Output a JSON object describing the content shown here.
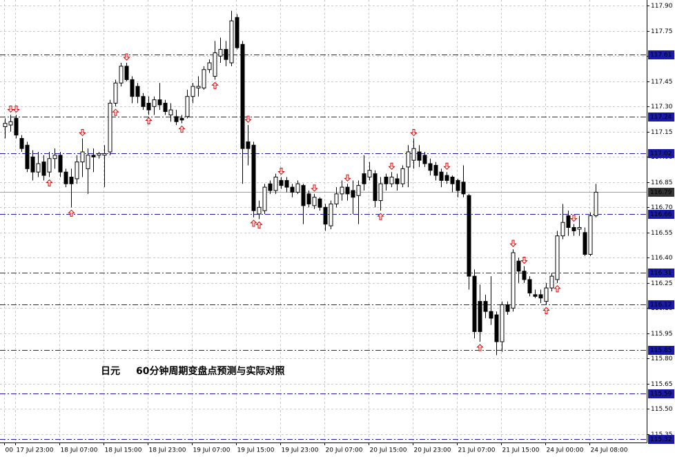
{
  "chart_data": {
    "type": "candlestick",
    "title": "日元",
    "subtitle": "60分钟周期变盘点预测与实际对照",
    "categories": [
      "00",
      null,
      "17 Jul 23:00",
      null,
      null,
      null,
      null,
      null,
      null,
      null,
      "18 Jul 07:00",
      null,
      null,
      null,
      null,
      null,
      null,
      null,
      "18 Jul 15:00",
      null,
      null,
      null,
      null,
      null,
      null,
      null,
      "18 Jul 23:00",
      null,
      null,
      null,
      null,
      null,
      null,
      null,
      "19 Jul 07:00",
      null,
      null,
      null,
      null,
      null,
      null,
      null,
      "19 Jul 15:00",
      null,
      null,
      null,
      null,
      null,
      null,
      null,
      "19 Jul 23:00",
      null,
      null,
      null,
      null,
      null,
      null,
      null,
      "20 Jul 07:00",
      null,
      null,
      null,
      null,
      null,
      null,
      null,
      "20 Jul 15:00",
      null,
      null,
      null,
      null,
      null,
      null,
      null,
      "20 Jul 23:00",
      null,
      null,
      null,
      null,
      null,
      null,
      null,
      "21 Jul 07:00",
      null,
      null,
      null,
      null,
      null,
      null,
      null,
      "21 Jul 15:00",
      null,
      null,
      null,
      null,
      null,
      null,
      null,
      "24 Jul 00:00",
      null,
      null,
      null,
      null,
      null,
      null,
      null,
      "24 Jul 08:00",
      null
    ],
    "open": [
      117.18,
      117.19,
      117.23,
      117.11,
      117.07,
      117.0,
      116.91,
      116.97,
      116.91,
      116.99,
      117.01,
      116.91,
      116.88,
      116.87,
      116.97,
      116.93,
      117.01,
      117.01,
      117.01,
      117.03,
      117.32,
      117.44,
      117.54,
      117.46,
      117.42,
      117.36,
      117.32,
      117.3,
      117.34,
      117.32,
      117.25,
      117.24,
      117.23,
      117.24,
      117.36,
      117.41,
      117.41,
      117.52,
      117.48,
      117.6,
      117.64,
      117.56,
      117.83,
      117.67,
      117.09,
      117.07,
      116.66,
      116.68,
      116.84,
      116.8,
      116.86,
      116.86,
      116.82,
      116.79,
      116.83,
      116.78,
      116.71,
      116.75,
      116.7,
      116.59,
      116.72,
      116.78,
      116.82,
      116.8,
      116.77,
      116.9,
      116.88,
      116.9,
      116.74,
      116.88,
      116.84,
      116.87,
      116.84,
      116.94,
      116.98,
      117.03,
      117.01,
      116.96,
      116.95,
      116.91,
      116.89,
      116.88,
      116.86,
      116.85,
      116.77,
      116.29,
      116.14,
      116.14,
      116.08,
      116.06,
      115.9,
      116.12,
      116.1,
      116.38,
      116.32,
      116.27,
      116.18,
      116.18,
      116.14,
      116.22,
      116.27,
      116.53,
      116.65,
      116.58,
      116.57,
      116.55,
      116.42,
      116.65
    ],
    "high": [
      117.23,
      117.25,
      117.25,
      117.13,
      117.09,
      117.04,
      117.03,
      117.01,
      117.03,
      117.05,
      117.03,
      116.93,
      116.93,
      117.01,
      117.11,
      117.05,
      117.05,
      117.03,
      117.07,
      117.34,
      117.46,
      117.56,
      117.56,
      117.48,
      117.44,
      117.38,
      117.36,
      117.36,
      117.44,
      117.34,
      117.32,
      117.28,
      117.25,
      117.4,
      117.44,
      117.48,
      117.54,
      117.58,
      117.69,
      117.71,
      117.69,
      117.87,
      117.85,
      117.69,
      117.19,
      117.09,
      116.74,
      116.84,
      116.86,
      116.9,
      116.88,
      116.88,
      116.84,
      116.86,
      116.84,
      116.8,
      116.78,
      116.76,
      116.72,
      116.74,
      116.82,
      116.86,
      116.84,
      116.86,
      116.86,
      117.01,
      116.97,
      116.92,
      116.88,
      116.9,
      116.91,
      116.9,
      116.95,
      117.07,
      117.11,
      117.07,
      117.03,
      116.99,
      116.97,
      116.93,
      116.91,
      116.89,
      116.87,
      116.95,
      116.78,
      116.33,
      116.24,
      116.18,
      116.29,
      116.08,
      116.14,
      116.14,
      116.45,
      116.4,
      116.35,
      116.29,
      116.21,
      116.21,
      116.25,
      116.31,
      116.56,
      116.72,
      116.68,
      116.6,
      116.65,
      116.58,
      116.67,
      116.84
    ],
    "low": [
      117.11,
      117.15,
      117.11,
      117.03,
      116.91,
      116.86,
      116.88,
      116.86,
      116.88,
      116.93,
      116.88,
      116.82,
      116.7,
      116.84,
      116.88,
      116.78,
      116.91,
      116.99,
      116.82,
      117.01,
      117.3,
      117.42,
      117.45,
      117.32,
      117.32,
      117.28,
      117.25,
      117.25,
      117.28,
      117.25,
      117.21,
      117.19,
      117.2,
      117.23,
      117.32,
      117.36,
      117.4,
      117.5,
      117.46,
      117.56,
      117.54,
      117.54,
      117.64,
      116.84,
      116.95,
      116.64,
      116.63,
      116.66,
      116.78,
      116.78,
      116.81,
      116.79,
      116.76,
      116.78,
      116.6,
      116.7,
      116.69,
      116.68,
      116.56,
      116.57,
      116.7,
      116.74,
      116.74,
      116.66,
      116.6,
      116.8,
      116.86,
      116.7,
      116.68,
      116.8,
      116.82,
      116.8,
      116.82,
      116.82,
      116.93,
      116.94,
      116.94,
      116.89,
      116.86,
      116.82,
      116.84,
      116.79,
      116.76,
      116.76,
      116.21,
      115.92,
      115.9,
      116.04,
      116.0,
      115.82,
      115.84,
      116.06,
      116.08,
      116.25,
      116.25,
      116.17,
      116.16,
      116.13,
      116.12,
      116.2,
      116.25,
      116.51,
      116.53,
      116.53,
      116.53,
      116.41,
      116.41,
      116.64
    ],
    "close": [
      117.2,
      117.21,
      117.13,
      117.05,
      116.93,
      116.91,
      116.96,
      116.89,
      116.99,
      117.01,
      116.91,
      116.84,
      116.84,
      116.97,
      117.03,
      117.01,
      117.0,
      117.02,
      117.02,
      117.32,
      117.44,
      117.54,
      117.46,
      117.36,
      117.36,
      117.3,
      117.28,
      117.34,
      117.31,
      117.27,
      117.28,
      117.21,
      117.22,
      117.36,
      117.42,
      117.42,
      117.52,
      117.56,
      117.62,
      117.64,
      117.58,
      117.81,
      117.65,
      117.05,
      117.05,
      116.68,
      116.7,
      116.82,
      116.8,
      116.88,
      116.83,
      116.82,
      116.79,
      116.84,
      116.71,
      116.72,
      116.76,
      116.7,
      116.6,
      116.72,
      116.78,
      116.82,
      116.78,
      116.76,
      116.83,
      116.84,
      116.92,
      116.74,
      116.84,
      116.84,
      116.88,
      116.84,
      116.93,
      117.03,
      117.05,
      116.98,
      116.96,
      116.92,
      116.89,
      116.86,
      116.86,
      116.84,
      116.8,
      116.78,
      116.29,
      115.96,
      115.96,
      116.08,
      116.04,
      115.9,
      116.12,
      116.08,
      116.43,
      116.32,
      116.27,
      116.19,
      116.17,
      116.16,
      116.22,
      116.29,
      116.53,
      116.61,
      116.58,
      116.56,
      116.58,
      116.42,
      116.65,
      116.79
    ],
    "up_signals": [
      8,
      12,
      20,
      26,
      32,
      38,
      45,
      46,
      68,
      86,
      98,
      100
    ],
    "down_signals": [
      1,
      2,
      14,
      22,
      44,
      50,
      56,
      62,
      70,
      74,
      80,
      92,
      94,
      103
    ],
    "signal_color": "#e00000",
    "ylim": [
      115.3,
      117.93
    ],
    "yticks": [
      {
        "value": 117.9,
        "label": "117.90"
      },
      117.75,
      {
        "value": 117.6,
        "label": "117.60"
      },
      117.45,
      {
        "value": 117.3,
        "label": "117.30"
      },
      117.15,
      {
        "value": 117.0,
        "label": "117.00"
      },
      116.85,
      {
        "value": 116.7,
        "label": "116.70"
      },
      116.55,
      {
        "value": 116.4,
        "label": "116.40"
      },
      116.25,
      {
        "value": 116.1,
        "label": "116.10"
      },
      115.95,
      {
        "value": 115.8,
        "label": "115.80"
      },
      115.65,
      {
        "value": 115.5,
        "label": "115.50"
      },
      115.35
    ],
    "levels": [
      117.61,
      117.24,
      117.02,
      116.66,
      116.31,
      116.12,
      115.85,
      115.59,
      115.32
    ],
    "level_color": "#1a1aa8",
    "last_price": 116.79,
    "grid": true
  }
}
